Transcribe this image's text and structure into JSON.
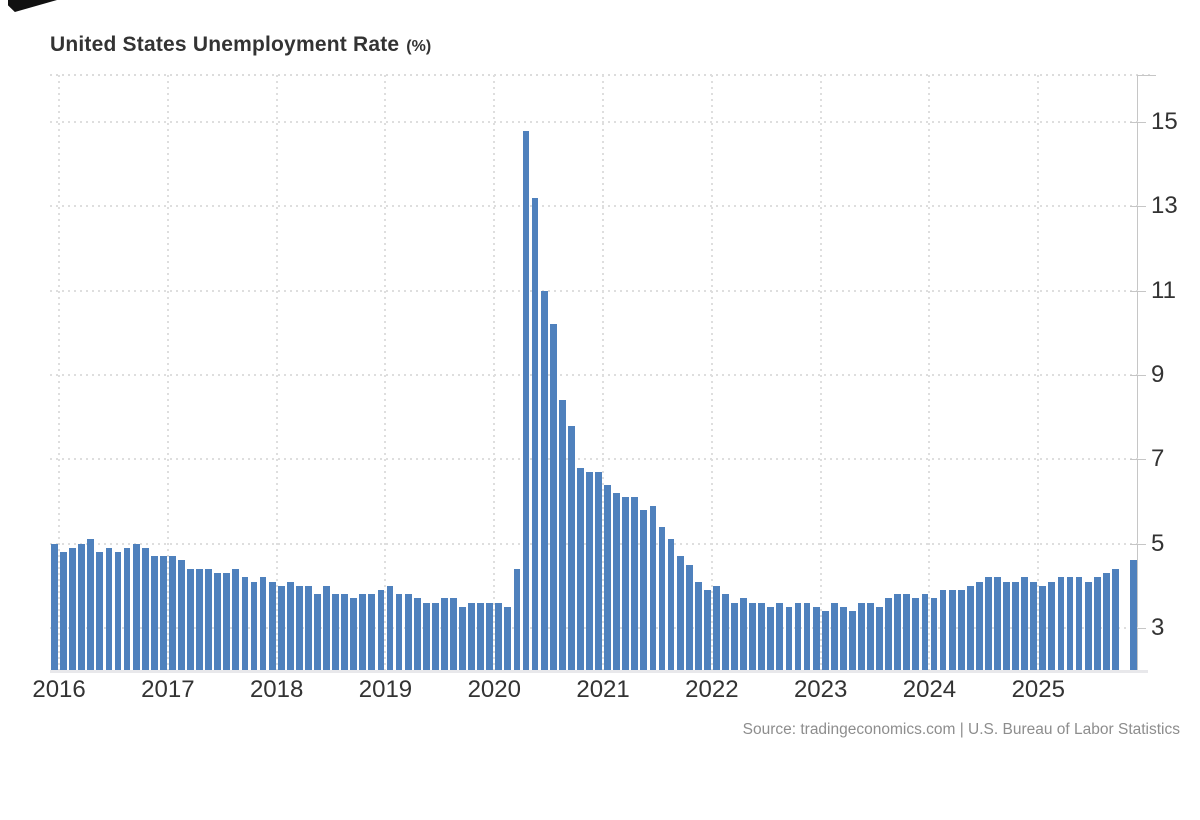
{
  "chart_data": {
    "type": "bar",
    "title": "United States Unemployment Rate",
    "title_suffix": "(%)",
    "source": "Source: tradingeconomics.com | U.S. Bureau of Labor Statistics",
    "series_name": "United States Unemployment Rate",
    "unit": "percent",
    "bar_color": "#4f81bd",
    "x_start": "2015-12",
    "x_end": "2025-11",
    "missing_months": [
      "2025-10"
    ],
    "frequency": "monthly",
    "ylim": [
      2,
      16.12
    ],
    "yticks": [
      3,
      5,
      7,
      9,
      11,
      13,
      15
    ],
    "year_labels": [
      "2016",
      "2017",
      "2018",
      "2019",
      "2020",
      "2021",
      "2022",
      "2023",
      "2024",
      "2025"
    ],
    "values": [
      5.0,
      4.8,
      4.9,
      5.0,
      5.1,
      4.8,
      4.9,
      4.8,
      4.9,
      5.0,
      4.9,
      4.7,
      4.7,
      4.7,
      4.6,
      4.4,
      4.4,
      4.4,
      4.3,
      4.3,
      4.4,
      4.2,
      4.1,
      4.2,
      4.1,
      4.0,
      4.1,
      4.0,
      4.0,
      3.8,
      4.0,
      3.8,
      3.8,
      3.7,
      3.8,
      3.8,
      3.9,
      4.0,
      3.8,
      3.8,
      3.7,
      3.6,
      3.6,
      3.7,
      3.7,
      3.5,
      3.6,
      3.6,
      3.6,
      3.6,
      3.5,
      4.4,
      14.8,
      13.2,
      11.0,
      10.2,
      8.4,
      7.8,
      6.8,
      6.7,
      6.7,
      6.4,
      6.2,
      6.1,
      6.1,
      5.8,
      5.9,
      5.4,
      5.1,
      4.7,
      4.5,
      4.1,
      3.9,
      4.0,
      3.8,
      3.6,
      3.7,
      3.6,
      3.6,
      3.5,
      3.6,
      3.5,
      3.6,
      3.6,
      3.5,
      3.4,
      3.6,
      3.5,
      3.4,
      3.6,
      3.6,
      3.5,
      3.7,
      3.8,
      3.8,
      3.7,
      3.8,
      3.7,
      3.9,
      3.9,
      3.9,
      4.0,
      4.1,
      4.2,
      4.2,
      4.1,
      4.1,
      4.2,
      4.1,
      4.0,
      4.1,
      4.2,
      4.2,
      4.2,
      4.1,
      4.2,
      4.3,
      4.4,
      null,
      4.6
    ]
  }
}
